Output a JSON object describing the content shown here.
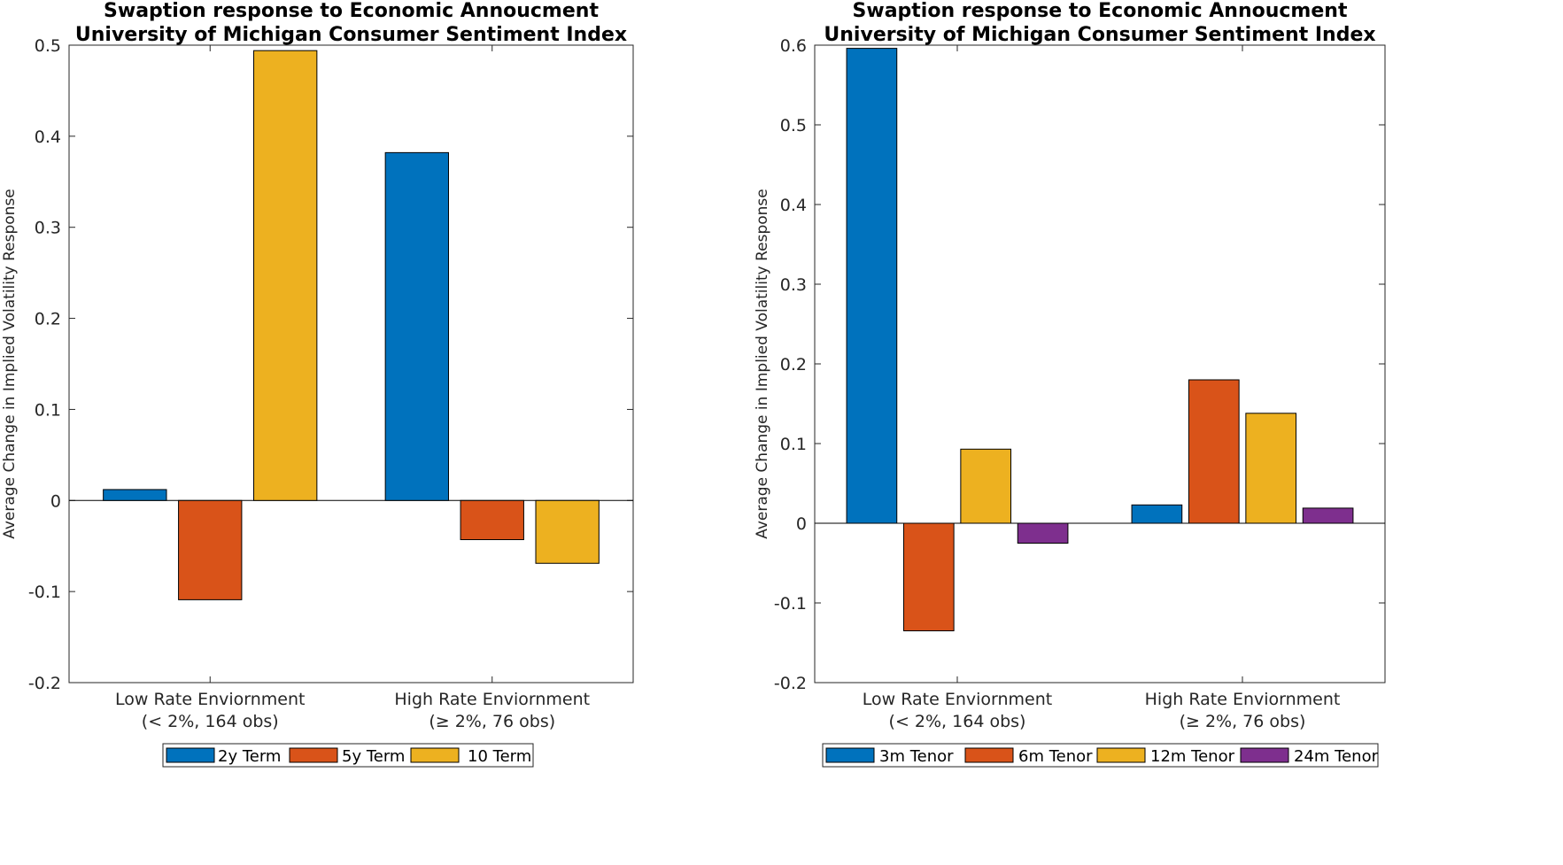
{
  "chart_data": [
    {
      "type": "bar",
      "title": [
        "Swaption response to Economic Annoucment",
        "University of Michigan Consumer Sentiment Index"
      ],
      "ylabel": "Average Change in Implied Volatility Response",
      "categories": [
        [
          "Low Rate Enviornment",
          "(< 2%, 164 obs)"
        ],
        [
          "High Rate Enviornment",
          "(≥ 2%, 76 obs)"
        ]
      ],
      "ylim": [
        -0.2,
        0.5
      ],
      "yticks": [
        -0.2,
        -0.1,
        0,
        0.1,
        0.2,
        0.3,
        0.4,
        0.5
      ],
      "ytick_labels": [
        "-0.2",
        "-0.1",
        "0",
        "0.1",
        "0.2",
        "0.3",
        "0.4",
        "0.5"
      ],
      "series": [
        {
          "name": "2y Term",
          "color": "#0072BD",
          "values": [
            0.012,
            0.382
          ]
        },
        {
          "name": "5y Term",
          "color": "#D95319",
          "values": [
            -0.109,
            -0.043
          ]
        },
        {
          "name": "10 Term",
          "color": "#EDB120",
          "values": [
            0.494,
            -0.069
          ]
        }
      ],
      "legend_placement": "bottom",
      "grid": false
    },
    {
      "type": "bar",
      "title": [
        "Swaption response to Economic Annoucment",
        "University of Michigan Consumer Sentiment Index"
      ],
      "ylabel": "Average Change in Implied Volatility Response",
      "categories": [
        [
          "Low Rate Enviornment",
          "(< 2%, 164 obs)"
        ],
        [
          "High Rate Enviornment",
          "(≥ 2%, 76 obs)"
        ]
      ],
      "ylim": [
        -0.2,
        0.6
      ],
      "yticks": [
        -0.2,
        -0.1,
        0,
        0.1,
        0.2,
        0.3,
        0.4,
        0.5,
        0.6
      ],
      "ytick_labels": [
        "-0.2",
        "-0.1",
        "0",
        "0.1",
        "0.2",
        "0.3",
        "0.4",
        "0.5",
        "0.6"
      ],
      "series": [
        {
          "name": "3m Tenor",
          "color": "#0072BD",
          "values": [
            0.596,
            0.023
          ]
        },
        {
          "name": "6m Tenor",
          "color": "#D95319",
          "values": [
            -0.135,
            0.18
          ]
        },
        {
          "name": "12m Tenor",
          "color": "#EDB120",
          "values": [
            0.093,
            0.138
          ]
        },
        {
          "name": "24m Tenor",
          "color": "#7E2F8E",
          "values": [
            -0.025,
            0.019
          ]
        }
      ],
      "legend_placement": "bottom",
      "grid": false
    }
  ]
}
